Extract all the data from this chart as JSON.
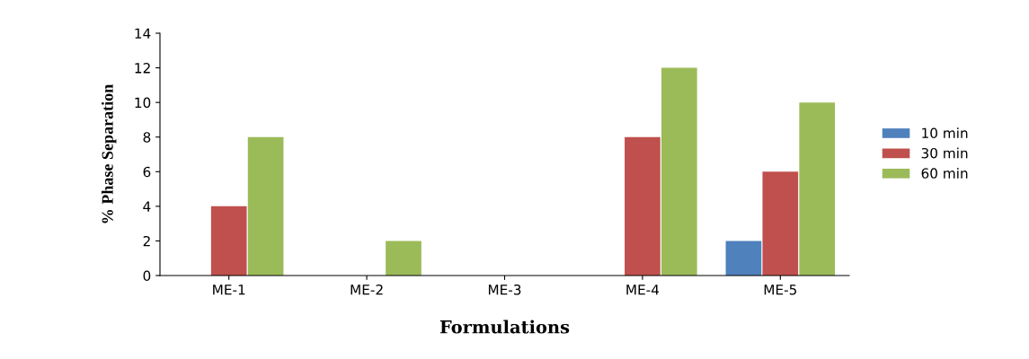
{
  "chart_data": {
    "type": "bar",
    "xlabel": "Formulations",
    "ylabel": "% Phase Separation",
    "categories": [
      "ME-1",
      "ME-2",
      "ME-3",
      "ME-4",
      "ME-5"
    ],
    "series": [
      {
        "name": "10 min",
        "color": "#4f81bd",
        "values": [
          0,
          0,
          0,
          0,
          2
        ]
      },
      {
        "name": "30 min",
        "color": "#c0504d",
        "values": [
          4,
          0,
          0,
          8,
          6
        ]
      },
      {
        "name": "60 min",
        "color": "#9bbb59",
        "values": [
          8,
          2,
          0,
          12,
          10
        ]
      }
    ],
    "ylim": [
      0,
      14
    ],
    "yticks": [
      0,
      2,
      4,
      6,
      8,
      10,
      12,
      14
    ],
    "grid": false,
    "legend": "right"
  }
}
